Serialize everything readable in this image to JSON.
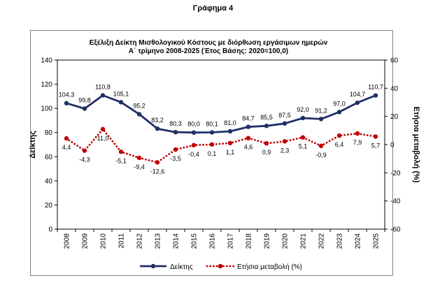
{
  "figure_title": "Γράφημα 4",
  "chart_data": {
    "type": "line",
    "title_line1": "Εξέλιξη Δείκτη Μισθολογικού  Κόστους με διόρθωση εργάσιμων ημερών",
    "title_line2": "Α΄ τρίμηνο 2008-2025 (Έτος Βάσης: 2020=100,0)",
    "categories": [
      "2008",
      "2009",
      "2010",
      "2011",
      "2012",
      "2013",
      "2014",
      "2015",
      "2016",
      "2017",
      "2018",
      "2019",
      "2020",
      "2021",
      "2022",
      "2023",
      "2024",
      "2025"
    ],
    "series": [
      {
        "name": "Δείκτης",
        "axis": "left",
        "color": "#1f2f66",
        "style": "solid",
        "values": [
          104.3,
          99.8,
          110.8,
          105.1,
          95.2,
          83.2,
          80.3,
          80.0,
          80.1,
          81.0,
          84.7,
          85.5,
          87.5,
          92.0,
          91.2,
          97.0,
          104.7,
          110.7
        ],
        "labels": [
          "104,3",
          "99,8",
          "110,8",
          "105,1",
          "95,2",
          "83,2",
          "80,3",
          "80,0",
          "80,1",
          "81,0",
          "84,7",
          "85,5",
          "87,5",
          "92,0",
          "91,2",
          "97,0",
          "104,7",
          "110,7"
        ]
      },
      {
        "name": "Ετήσια μεταβολή (%)",
        "axis": "right",
        "color": "#c00000",
        "style": "dotted",
        "values": [
          4.4,
          -4.3,
          11.0,
          -5.1,
          -9.4,
          -12.6,
          -3.5,
          -0.4,
          0.1,
          1.1,
          4.6,
          0.9,
          2.3,
          5.1,
          -0.9,
          6.4,
          7.9,
          5.7
        ],
        "labels": [
          "4,4",
          "-4,3",
          "11,0",
          "-5,1",
          "-9,4",
          "-12,6",
          "-3,5",
          "-0,4",
          "0,1",
          "1,1",
          "4,6",
          "0,9",
          "2,3",
          "5,1",
          "-0,9",
          "6,4",
          "7,9",
          "5,7"
        ]
      }
    ],
    "ylabel": "Δείκτης",
    "y2label": "Ετήσια μεταβολή (%)",
    "ylim": [
      0,
      140
    ],
    "yticks": [
      "0",
      "20",
      "40",
      "60",
      "80",
      "100",
      "120",
      "140"
    ],
    "y2lim": [
      -60,
      60
    ],
    "y2ticks": [
      "-60",
      "-40",
      "-20",
      "0",
      "20",
      "40",
      "60"
    ],
    "grid": false,
    "legend_position": "bottom"
  }
}
